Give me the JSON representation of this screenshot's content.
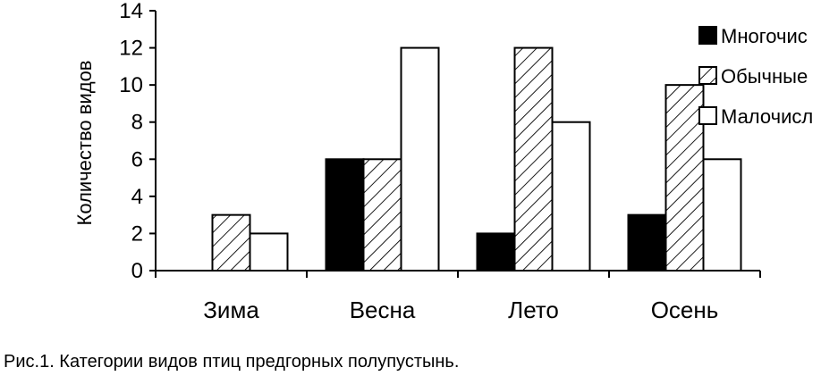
{
  "caption": "Рис.1. Категории видов птиц предгорных полупустынь.",
  "chart_data": {
    "type": "bar",
    "title": "",
    "xlabel": "",
    "ylabel": "Количество видов",
    "ylim": [
      0,
      14
    ],
    "yticks": [
      0,
      2,
      4,
      6,
      8,
      10,
      12,
      14
    ],
    "grid": false,
    "legend_position": "right",
    "categories": [
      "Зима",
      "Весна",
      "Лето",
      "Осень"
    ],
    "series": [
      {
        "name": "Многочис",
        "values": [
          0,
          6,
          2,
          3
        ],
        "fill": "#000000",
        "pattern": "solid"
      },
      {
        "name": "Обычные",
        "values": [
          3,
          6,
          12,
          10
        ],
        "fill": "#ffffff",
        "pattern": "diagonal-hatch"
      },
      {
        "name": "Малочисл",
        "values": [
          2,
          12,
          8,
          6
        ],
        "fill": "#ffffff",
        "pattern": "none"
      }
    ]
  }
}
